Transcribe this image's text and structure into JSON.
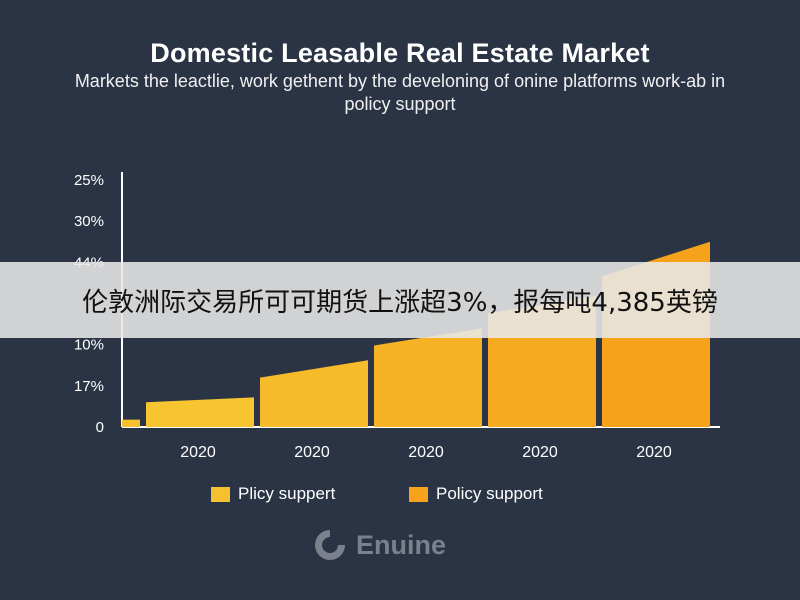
{
  "header": {
    "title": "Domestic Leasable Real Estate Market",
    "subtitle": "Markets the leactlie, work gethent by the develoning of onine platforms work-ab in policy support"
  },
  "chart_data": {
    "type": "bar",
    "title": "Domestic Leasable Real Estate Market",
    "subtitle": "Markets the leactlie, work gethent by the develoning of onine platforms work-ab in policy support",
    "xlabel": "",
    "ylabel": "",
    "y_tick_labels": [
      "0",
      "17%",
      "10%",
      "",
      "44%",
      "30%",
      "25%"
    ],
    "categories": [
      "2020",
      "2020",
      "2020",
      "2020",
      "2020"
    ],
    "series": [
      {
        "name": "Plicy suppert",
        "color": "#f5c12e",
        "values_fraction_of_axis": [
          0.1,
          0.2,
          0.33,
          0.46,
          0.61
        ]
      },
      {
        "name": "Policy support",
        "color": "#f7a21b",
        "values_fraction_of_axis": [
          0.12,
          0.27,
          0.4,
          0.53,
          0.75
        ]
      }
    ],
    "ylim_fraction": [
      0,
      1
    ],
    "grid": false,
    "legend_position": "bottom"
  },
  "legend": {
    "items": [
      {
        "label": "Plicy suppert",
        "color": "#f5c12e"
      },
      {
        "label": "Policy support",
        "color": "#f7a21b"
      }
    ]
  },
  "logo": {
    "text": "Enuine",
    "icon": "enuine-logo-icon"
  },
  "banner": {
    "text": "伦敦洲际交易所可可期货上涨超3%，报每吨4,385英镑"
  }
}
